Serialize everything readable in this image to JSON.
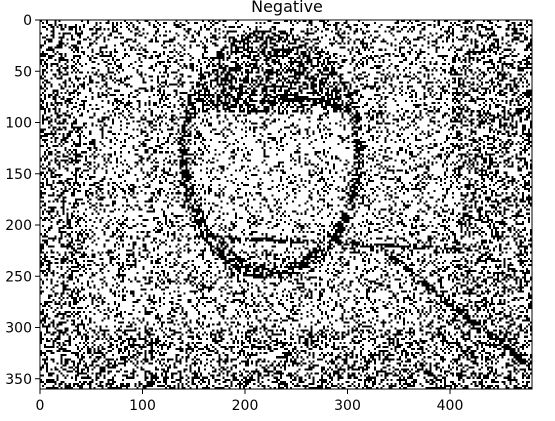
{
  "figure": {
    "title": "Negative"
  },
  "chart_data": {
    "type": "heatmap",
    "title": "Negative",
    "xlabel": "",
    "ylabel": "",
    "x_range": [
      0,
      480
    ],
    "y_range": [
      0,
      360
    ],
    "y_inverted": true,
    "x_ticks": [
      0,
      100,
      200,
      300,
      400
    ],
    "y_ticks": [
      0,
      50,
      100,
      150,
      200,
      250,
      300,
      350
    ],
    "grid": false,
    "colormap": [
      "#000000",
      "#ffffff"
    ],
    "content": "binary edge-detection image of a face, rendered as black pixels on white"
  }
}
